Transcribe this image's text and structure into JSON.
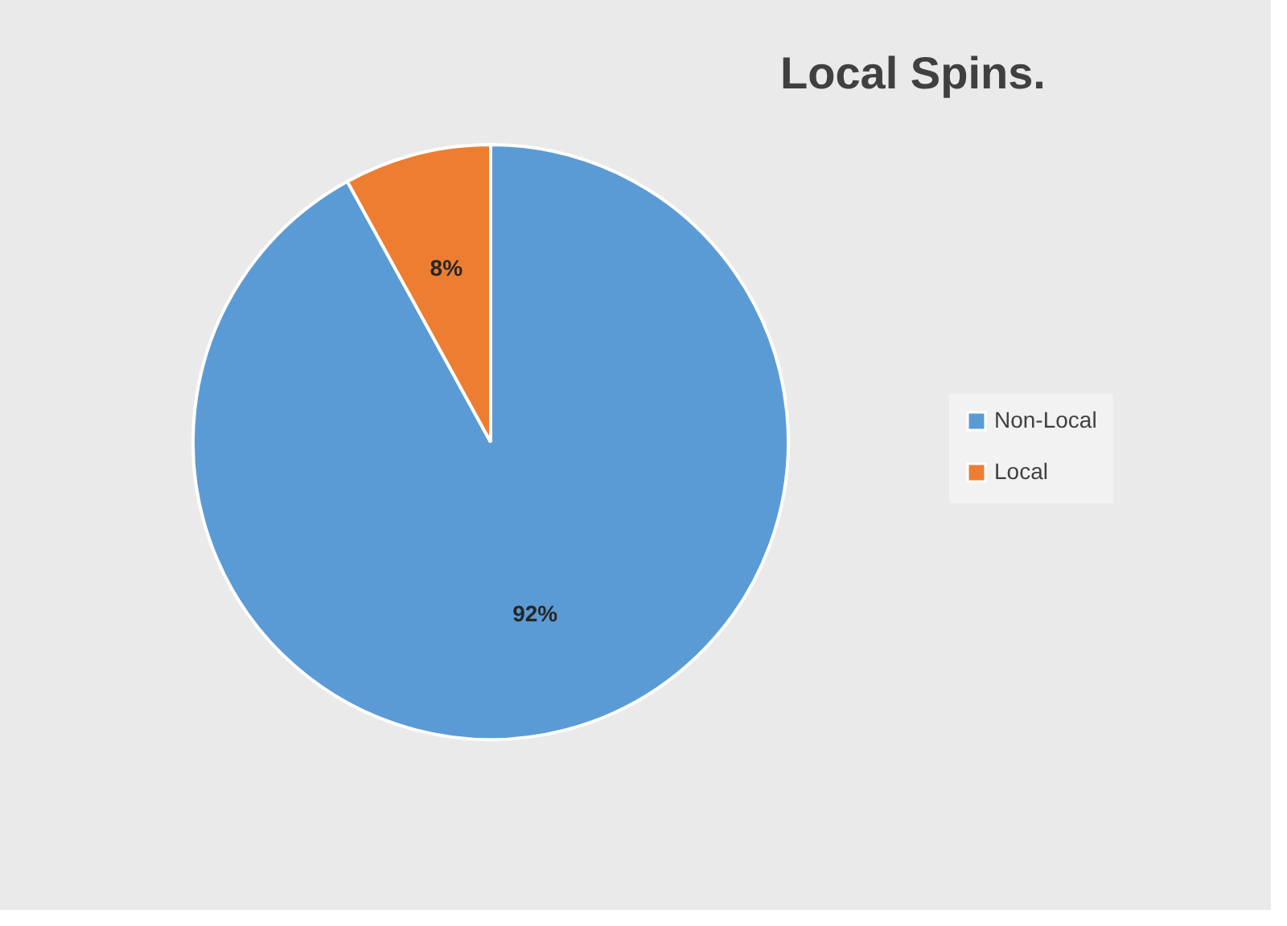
{
  "chart_data": {
    "type": "pie",
    "title": "Local Spins.",
    "categories": [
      "Non-Local",
      "Local"
    ],
    "values": [
      92,
      8
    ],
    "colors": [
      "#5b9bd5",
      "#ed7d31"
    ],
    "value_labels": [
      "92%",
      "8%"
    ],
    "legend": "right"
  }
}
